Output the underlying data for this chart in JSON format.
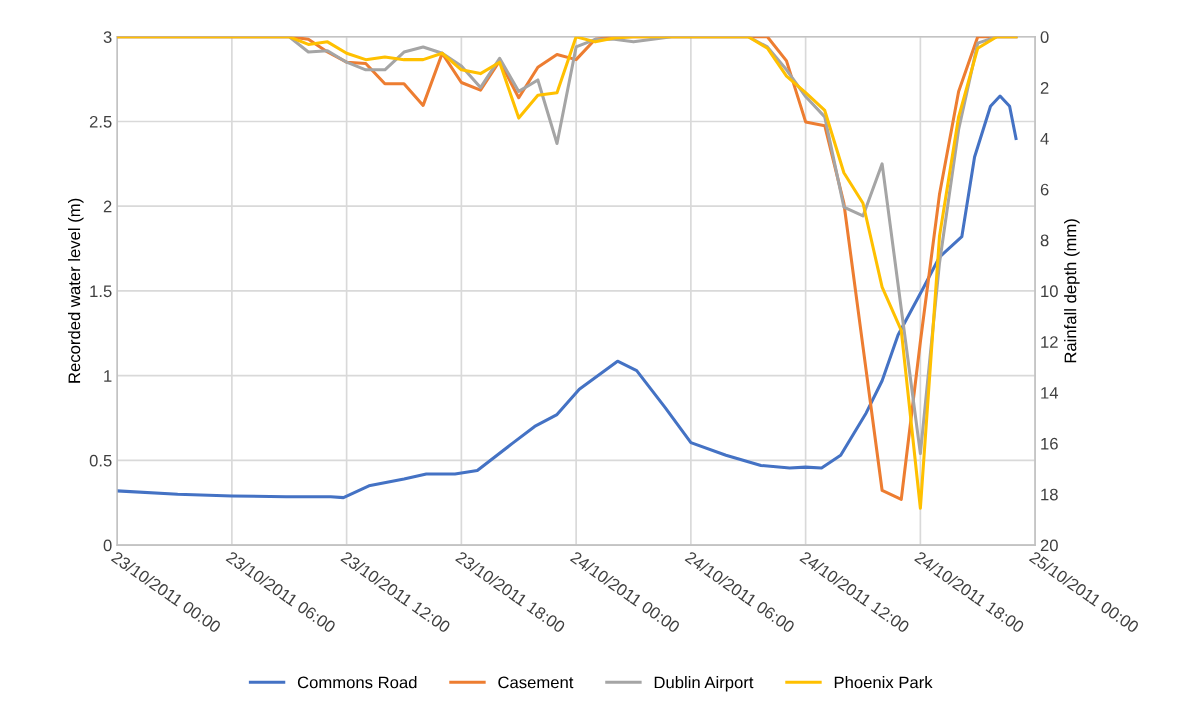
{
  "chart_data": {
    "type": "line",
    "ylabel": "Recorded water level (m)",
    "y2label": "Rainfall depth (mm)",
    "x": [
      "2011-10-23T00:00",
      "2011-10-23T01:00",
      "2011-10-23T02:00",
      "2011-10-23T03:00",
      "2011-10-23T04:00",
      "2011-10-23T05:00",
      "2011-10-23T06:00",
      "2011-10-23T07:00",
      "2011-10-23T08:00",
      "2011-10-23T09:00",
      "2011-10-23T10:00",
      "2011-10-23T11:00",
      "2011-10-23T12:00",
      "2011-10-23T13:00",
      "2011-10-23T14:00",
      "2011-10-23T15:00",
      "2011-10-23T16:00",
      "2011-10-23T17:00",
      "2011-10-23T18:00",
      "2011-10-23T19:00",
      "2011-10-23T20:00",
      "2011-10-23T21:00",
      "2011-10-23T22:00",
      "2011-10-23T23:00",
      "2011-10-24T00:00",
      "2011-10-24T01:00",
      "2011-10-24T02:00",
      "2011-10-24T03:00",
      "2011-10-24T04:00",
      "2011-10-24T05:00",
      "2011-10-24T06:00",
      "2011-10-24T07:00",
      "2011-10-24T08:00",
      "2011-10-24T09:00",
      "2011-10-24T10:00",
      "2011-10-24T11:00",
      "2011-10-24T12:00",
      "2011-10-24T13:00",
      "2011-10-24T14:00",
      "2011-10-24T15:00",
      "2011-10-24T16:00",
      "2011-10-24T17:00",
      "2011-10-24T18:00",
      "2011-10-24T19:00",
      "2011-10-24T20:00",
      "2011-10-24T21:00",
      "2011-10-24T22:00",
      "2011-10-24T23:00"
    ],
    "series": [
      {
        "name": "Commons Road",
        "color": "#4472c4",
        "x": [
          "2011-10-23T00:00",
          "2011-10-23T03:10",
          "2011-10-23T06:00",
          "2011-10-23T08:50",
          "2011-10-23T11:10",
          "2011-10-23T11:50",
          "2011-10-23T13:10",
          "2011-10-23T15:00",
          "2011-10-23T16:10",
          "2011-10-23T17:40",
          "2011-10-23T18:50",
          "2011-10-23T20:40",
          "2011-10-23T21:50",
          "2011-10-23T23:00",
          "2011-10-24T00:10",
          "2011-10-24T02:10",
          "2011-10-24T03:10",
          "2011-10-24T04:40",
          "2011-10-24T06:00",
          "2011-10-24T07:50",
          "2011-10-24T09:40",
          "2011-10-24T11:10",
          "2011-10-24T12:00",
          "2011-10-24T12:50",
          "2011-10-24T13:50",
          "2011-10-24T15:10",
          "2011-10-24T16:00",
          "2011-10-24T16:50",
          "2011-10-24T18:10",
          "2011-10-24T19:00",
          "2011-10-24T20:10",
          "2011-10-24T20:50",
          "2011-10-24T21:40",
          "2011-10-24T22:10",
          "2011-10-24T22:40",
          "2011-10-24T23:00"
        ],
        "values": [
          0.32,
          0.3,
          0.29,
          0.285,
          0.285,
          0.28,
          0.35,
          0.39,
          0.42,
          0.42,
          0.44,
          0.6,
          0.7,
          0.77,
          0.92,
          1.085,
          1.03,
          0.81,
          0.605,
          0.53,
          0.47,
          0.455,
          0.46,
          0.455,
          0.53,
          0.78,
          0.97,
          1.24,
          1.52,
          1.7,
          1.82,
          2.29,
          2.59,
          2.65,
          2.59,
          2.4
        ]
      },
      {
        "name": "Casement",
        "color": "#ed7d31",
        "axis": "y2",
        "values": [
          0,
          0,
          0,
          0,
          0,
          0,
          0,
          0,
          0,
          0,
          0.1,
          0.6,
          1.0,
          1.05,
          1.85,
          1.85,
          2.7,
          0.65,
          1.8,
          2.1,
          0.95,
          2.4,
          1.2,
          0.7,
          0.9,
          0.1,
          0,
          0,
          0,
          0,
          0,
          0,
          0,
          0,
          0,
          0.95,
          3.35,
          3.5,
          6.55,
          12.2,
          17.85,
          18.2,
          12.0,
          6.2,
          2.15,
          0,
          0,
          0
        ]
      },
      {
        "name": "Dublin Airport",
        "color": "#a5a5a5",
        "axis": "y2",
        "values": [
          0,
          0,
          0,
          0,
          0,
          0,
          0,
          0,
          0,
          0,
          0.6,
          0.55,
          1.0,
          1.3,
          1.3,
          0.6,
          0.4,
          0.65,
          1.15,
          2.0,
          0.85,
          2.15,
          1.7,
          4.2,
          0.4,
          0.1,
          0.1,
          0.2,
          0.1,
          0,
          0,
          0,
          0,
          0,
          0.4,
          1.3,
          2.35,
          3.15,
          6.7,
          7.05,
          5.0,
          10.7,
          16.4,
          8.9,
          3.65,
          0.25,
          0,
          0
        ]
      },
      {
        "name": "Phoenix Park",
        "color": "#ffc000",
        "axis": "y2",
        "values": [
          0,
          0,
          0,
          0,
          0,
          0,
          0,
          0,
          0,
          0,
          0.3,
          0.2,
          0.65,
          0.9,
          0.8,
          0.9,
          0.9,
          0.65,
          1.3,
          1.45,
          1.0,
          3.2,
          2.3,
          2.2,
          0,
          0.2,
          0.05,
          0,
          0,
          0,
          0,
          0,
          0,
          0,
          0.45,
          1.55,
          2.2,
          2.9,
          5.35,
          6.55,
          9.85,
          11.55,
          18.55,
          7.85,
          3.15,
          0.45,
          0,
          0
        ]
      }
    ],
    "xlim": [
      "2011-10-23T00:00",
      "2011-10-25T00:00"
    ],
    "xticks": [
      {
        "value": "2011-10-23T00:00",
        "label": "23/10/2011 00:00"
      },
      {
        "value": "2011-10-23T06:00",
        "label": "23/10/2011 06:00"
      },
      {
        "value": "2011-10-23T12:00",
        "label": "23/10/2011 12:00"
      },
      {
        "value": "2011-10-23T18:00",
        "label": "23/10/2011 18:00"
      },
      {
        "value": "2011-10-24T00:00",
        "label": "24/10/2011 00:00"
      },
      {
        "value": "2011-10-24T06:00",
        "label": "24/10/2011 06:00"
      },
      {
        "value": "2011-10-24T12:00",
        "label": "24/10/2011 12:00"
      },
      {
        "value": "2011-10-24T18:00",
        "label": "24/10/2011 18:00"
      },
      {
        "value": "2011-10-25T00:00",
        "label": "25/10/2011 00:00"
      }
    ],
    "ylim": [
      0,
      3
    ],
    "yticks": [
      0,
      0.5,
      1,
      1.5,
      2,
      2.5,
      3
    ],
    "y2lim": [
      20,
      0
    ],
    "y2ticks": [
      0,
      2,
      4,
      6,
      8,
      10,
      12,
      14,
      16,
      18,
      20
    ],
    "grid": true,
    "legend": "bottom",
    "marker": "none",
    "line_style": "solid"
  }
}
